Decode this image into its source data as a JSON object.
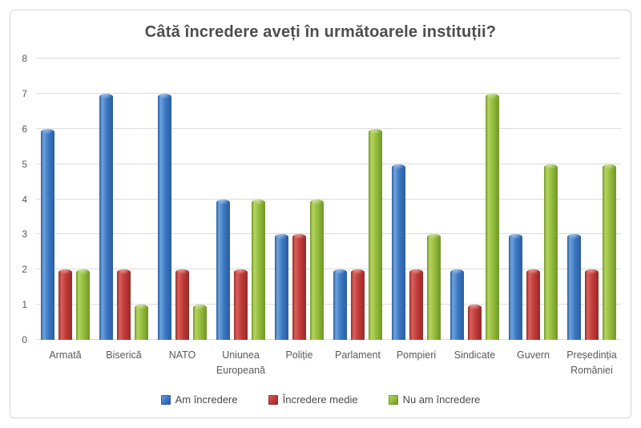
{
  "chart_data": {
    "type": "bar",
    "title": "Câtă încredere aveți în următoarele instituții?",
    "categories": [
      "Armată",
      "Biserică",
      "NATO",
      "Uniunea Europeană",
      "Poliție",
      "Parlament",
      "Pompieri",
      "Sindicate",
      "Guvern",
      "Președinția României"
    ],
    "series": [
      {
        "name": "Am încredere",
        "values": [
          6,
          7,
          7,
          4,
          3,
          2,
          5,
          2,
          3,
          3
        ],
        "color": "#3b78c2",
        "color_light": "#6ea3dd",
        "color_dark": "#2a5da0"
      },
      {
        "name": "Încredere medie",
        "values": [
          2,
          2,
          2,
          2,
          3,
          2,
          2,
          1,
          2,
          2
        ],
        "color": "#c23b38",
        "color_light": "#d9605a",
        "color_dark": "#952b28"
      },
      {
        "name": "Nu am încredere",
        "values": [
          2,
          1,
          1,
          4,
          4,
          6,
          3,
          7,
          5,
          5
        ],
        "color": "#94bc3d",
        "color_light": "#b5d45e",
        "color_dark": "#6f9826"
      }
    ],
    "ylim": [
      0,
      8
    ],
    "yticks": [
      0,
      1,
      2,
      3,
      4,
      5,
      6,
      7,
      8
    ],
    "grid": true,
    "legend_position": "bottom"
  },
  "styles": {
    "title_color": "#4d4d4d",
    "axis_text_color": "#595959",
    "gridline_color": "#dcdcdc",
    "panel_border_color": "#d4d4d4",
    "background": "#ffffff"
  }
}
